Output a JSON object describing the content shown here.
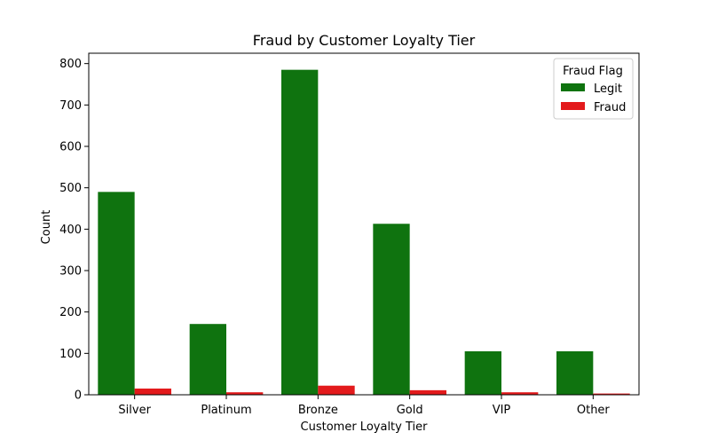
{
  "chart_data": {
    "type": "bar",
    "title": "Fraud by Customer Loyalty Tier",
    "xlabel": "Customer Loyalty Tier",
    "ylabel": "Count",
    "categories": [
      "Silver",
      "Platinum",
      "Bronze",
      "Gold",
      "VIP",
      "Other"
    ],
    "series": [
      {
        "name": "Legit",
        "color": "#0f730f",
        "values": [
          490,
          171,
          785,
          413,
          105,
          105
        ]
      },
      {
        "name": "Fraud",
        "color": "#e31a1c",
        "values": [
          15,
          6,
          22,
          11,
          6,
          3
        ]
      }
    ],
    "ylim": [
      0,
      825
    ],
    "yticks": [
      0,
      100,
      200,
      300,
      400,
      500,
      600,
      700,
      800
    ],
    "grid": false,
    "legend": {
      "title": "Fraud Flag",
      "position": "top-right"
    }
  }
}
